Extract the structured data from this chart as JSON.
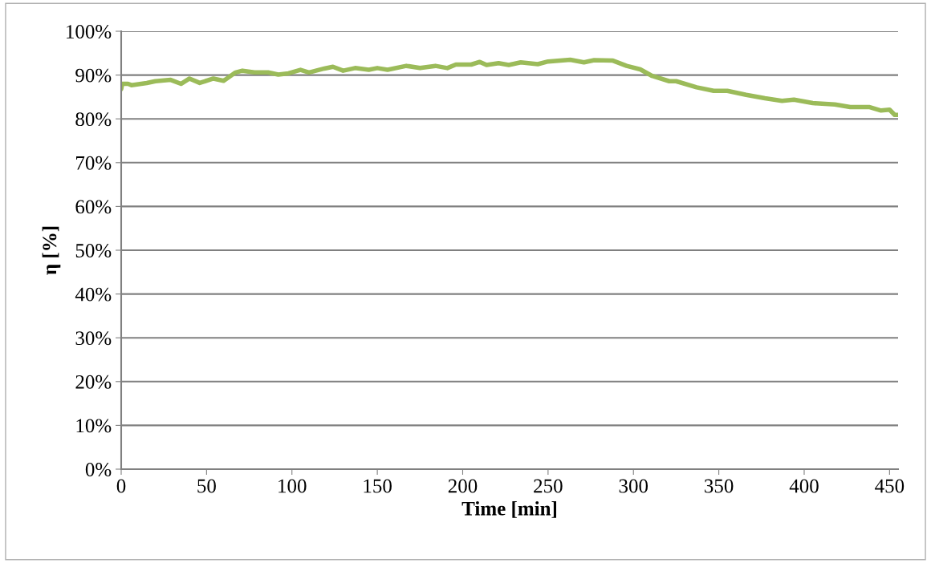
{
  "chart_data": {
    "type": "line",
    "xlabel": "Time [min]",
    "ylabel": "η [%]",
    "x": [
      0,
      0.6,
      4,
      6,
      15,
      20,
      29,
      35,
      40,
      46,
      54,
      60,
      67,
      71,
      78,
      86,
      92,
      98,
      105,
      110,
      119,
      124,
      130,
      137,
      145,
      150,
      156,
      167,
      175,
      184,
      191,
      196,
      205,
      210,
      214,
      221,
      227,
      234,
      244,
      250,
      263,
      271,
      277,
      288,
      296,
      304,
      311,
      321,
      325,
      337,
      347,
      355,
      366,
      377,
      387,
      394,
      405,
      418,
      427,
      438,
      445,
      450,
      453,
      455
    ],
    "series": [
      {
        "color": "#9bbb59",
        "values": [
          86.8,
          88.0,
          88.0,
          87.7,
          88.2,
          88.6,
          88.9,
          88.0,
          89.2,
          88.2,
          89.2,
          88.7,
          90.6,
          91.0,
          90.6,
          90.6,
          90.1,
          90.4,
          91.2,
          90.6,
          91.5,
          91.9,
          91.0,
          91.6,
          91.2,
          91.6,
          91.2,
          92.1,
          91.6,
          92.1,
          91.6,
          92.4,
          92.4,
          93.0,
          92.3,
          92.7,
          92.3,
          92.9,
          92.5,
          93.1,
          93.5,
          92.9,
          93.4,
          93.3,
          92.1,
          91.3,
          89.8,
          88.6,
          88.6,
          87.2,
          86.4,
          86.4,
          85.5,
          84.7,
          84.1,
          84.4,
          83.6,
          83.3,
          82.7,
          82.7,
          81.9,
          82.1,
          80.9,
          80.9
        ]
      }
    ],
    "xlim": [
      0,
      455
    ],
    "xticks": [
      0,
      50,
      100,
      150,
      200,
      250,
      300,
      350,
      400,
      450
    ],
    "ylim": [
      0,
      100
    ],
    "yticks": [
      {
        "value": 0,
        "label": "0%"
      },
      {
        "value": 10,
        "label": "10%"
      },
      {
        "value": 20,
        "label": "20%"
      },
      {
        "value": 30,
        "label": "30%"
      },
      {
        "value": 40,
        "label": "40%"
      },
      {
        "value": 50,
        "label": "50%"
      },
      {
        "value": 60,
        "label": "60%"
      },
      {
        "value": 70,
        "label": "70%"
      },
      {
        "value": 80,
        "label": "80%"
      },
      {
        "value": 90,
        "label": "90%"
      },
      {
        "value": 100,
        "label": "100%"
      }
    ],
    "grid": "y",
    "marker": "none",
    "line_style": "solid"
  }
}
